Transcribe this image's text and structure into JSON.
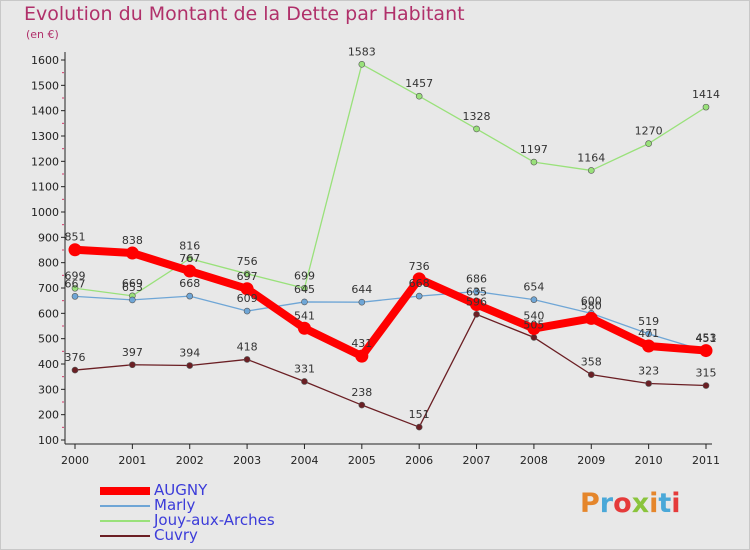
{
  "header": {
    "title": "Evolution du Montant de la Dette par Habitant",
    "unit": "(en €)"
  },
  "logo": {
    "text": "Proxiti",
    "colors": [
      "#e5862b",
      "#4aa8d8",
      "#e53b3b",
      "#8ac43c",
      "#e5862b",
      "#4aa8d8",
      "#e53b3b"
    ]
  },
  "chart_data": {
    "type": "line",
    "title": "Evolution du Montant de la Dette par Habitant",
    "ylabel": "(en €)",
    "xlabel": "",
    "x": [
      "2000",
      "2001",
      "2002",
      "2003",
      "2004",
      "2005",
      "2006",
      "2007",
      "2008",
      "2009",
      "2010",
      "2011"
    ],
    "ylim": [
      100,
      1600
    ],
    "yticks": [
      100,
      200,
      300,
      400,
      500,
      600,
      700,
      800,
      900,
      1000,
      1100,
      1200,
      1300,
      1400,
      1500,
      1600
    ],
    "grid": false,
    "legend_position": "bottom-left",
    "series": [
      {
        "name": "AUGNY",
        "color": "#ff0000",
        "values": [
          851,
          838,
          767,
          697,
          541,
          431,
          736,
          635,
          540,
          580,
          471,
          453
        ]
      },
      {
        "name": "Marly",
        "color": "#6fa6d6",
        "values": [
          667,
          653,
          668,
          609,
          645,
          644,
          668,
          686,
          654,
          600,
          519,
          451
        ]
      },
      {
        "name": "Jouy-aux-Arches",
        "color": "#99e17a",
        "values": [
          699,
          669,
          816,
          756,
          699,
          1583,
          1457,
          1328,
          1197,
          1164,
          1270,
          1414
        ]
      },
      {
        "name": "Cuvry",
        "color": "#6b1f24",
        "values": [
          376,
          397,
          394,
          418,
          331,
          238,
          151,
          596,
          505,
          358,
          323,
          315
        ]
      }
    ]
  }
}
